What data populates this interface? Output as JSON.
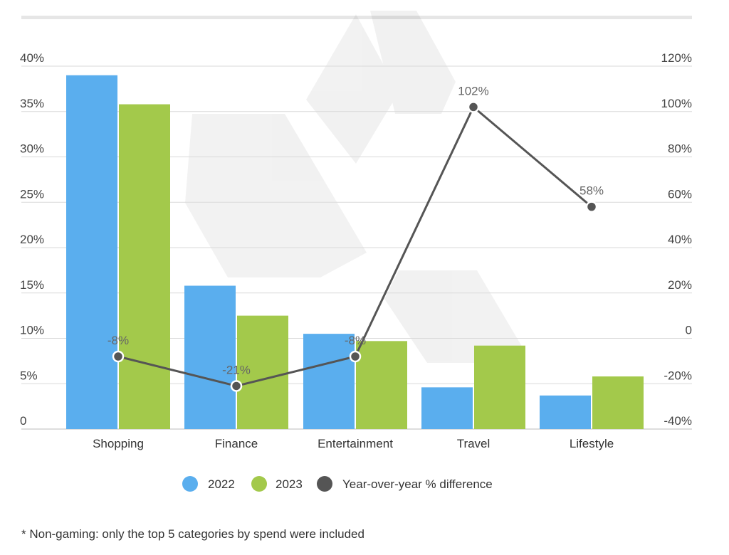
{
  "chart_data": {
    "type": "bar",
    "categories": [
      "Shopping",
      "Finance",
      "Entertainment",
      "Travel",
      "Lifestyle"
    ],
    "series": [
      {
        "name": "2022",
        "type": "bar",
        "axis": "left",
        "color": "#5aaeee",
        "values": [
          39,
          15.8,
          10.5,
          4.6,
          3.7
        ]
      },
      {
        "name": "2023",
        "type": "bar",
        "axis": "left",
        "color": "#a3c94b",
        "values": [
          35.8,
          12.5,
          9.7,
          9.2,
          5.8
        ]
      },
      {
        "name": "Year-over-year % difference",
        "type": "line",
        "axis": "right",
        "color": "#555555",
        "values": [
          -8,
          -21,
          -8,
          102,
          58
        ],
        "labels": [
          "-8%",
          "-21%",
          "-8%",
          "102%",
          "58%"
        ]
      }
    ],
    "y_left": {
      "ylim": [
        0,
        40
      ],
      "ticks": [
        "0",
        "5%",
        "10%",
        "15%",
        "20%",
        "25%",
        "30%",
        "35%",
        "40%"
      ]
    },
    "y_right": {
      "ylim": [
        -40,
        120
      ],
      "ticks": [
        "-40%",
        "-20%",
        "0",
        "20%",
        "40%",
        "60%",
        "80%",
        "100%",
        "120%"
      ]
    },
    "grid": true,
    "legend_position": "bottom-center",
    "legend": [
      "2022",
      "2023",
      "Year-over-year % difference"
    ]
  },
  "footnote": "* Non-gaming: only the top 5 categories by spend were included"
}
